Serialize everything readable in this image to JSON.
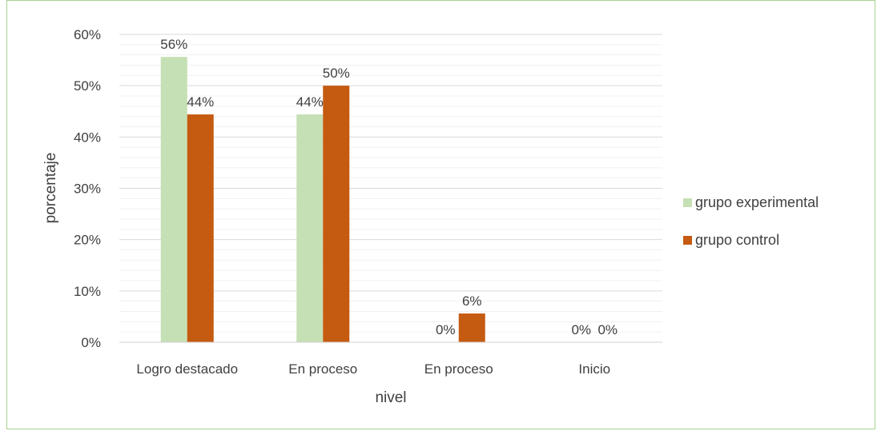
{
  "chart_data": {
    "type": "bar",
    "categories": [
      "Logro destacado",
      "En proceso",
      "En proceso",
      "Inicio"
    ],
    "series": [
      {
        "name": "grupo experimental",
        "color": "#c5e0b4",
        "values": [
          0.556,
          0.444,
          0.0,
          0.0
        ],
        "labels": [
          "56%",
          "44%",
          "0%",
          "0%"
        ]
      },
      {
        "name": "grupo control",
        "color": "#c55a11",
        "values": [
          0.444,
          0.5,
          0.056,
          0.0
        ],
        "labels": [
          "44%",
          "50%",
          "6%",
          "0%"
        ]
      }
    ],
    "ylim": [
      0,
      0.6
    ],
    "yticks": [
      0,
      0.1,
      0.2,
      0.3,
      0.4,
      0.5,
      0.6
    ],
    "ytick_labels": [
      "0%",
      "10%",
      "20%",
      "30%",
      "40%",
      "50%",
      "60%"
    ],
    "ylabel": "porcentaje",
    "xlabel": "nivel",
    "grid": true,
    "legend_position": "right"
  }
}
